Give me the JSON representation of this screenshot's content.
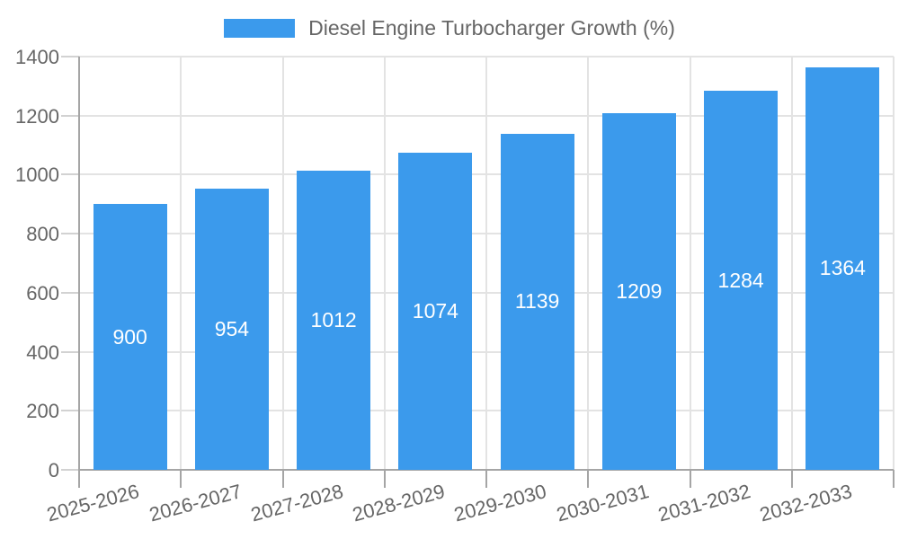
{
  "chart_data": {
    "type": "bar",
    "title": "Diesel Engine Turbocharger Growth (%)",
    "legend_position": "top",
    "categories": [
      "2025-2026",
      "2026-2027",
      "2027-2028",
      "2028-2029",
      "2029-2030",
      "2030-2031",
      "2031-2032",
      "2032-2033"
    ],
    "series": [
      {
        "name": "Diesel Engine Turbocharger Growth (%)",
        "values": [
          900,
          954,
          1012,
          1074,
          1139,
          1209,
          1284,
          1364
        ]
      }
    ],
    "value_labels": [
      "900",
      "954",
      "1012",
      "1074",
      "1139",
      "1209",
      "1284",
      "1364"
    ],
    "xlabel": "",
    "ylabel": "",
    "ylim": [
      0,
      1400
    ],
    "ytick_step": 200,
    "y_tick_labels": [
      "0",
      "200",
      "400",
      "600",
      "800",
      "1000",
      "1200",
      "1400"
    ],
    "grid": true,
    "colors": {
      "bar": "#3b9aec",
      "bar_value_text": "#ffffff",
      "axis_text": "#666666",
      "gridline": "#e3e3e3",
      "axis_line": "#a5a5a5"
    }
  }
}
